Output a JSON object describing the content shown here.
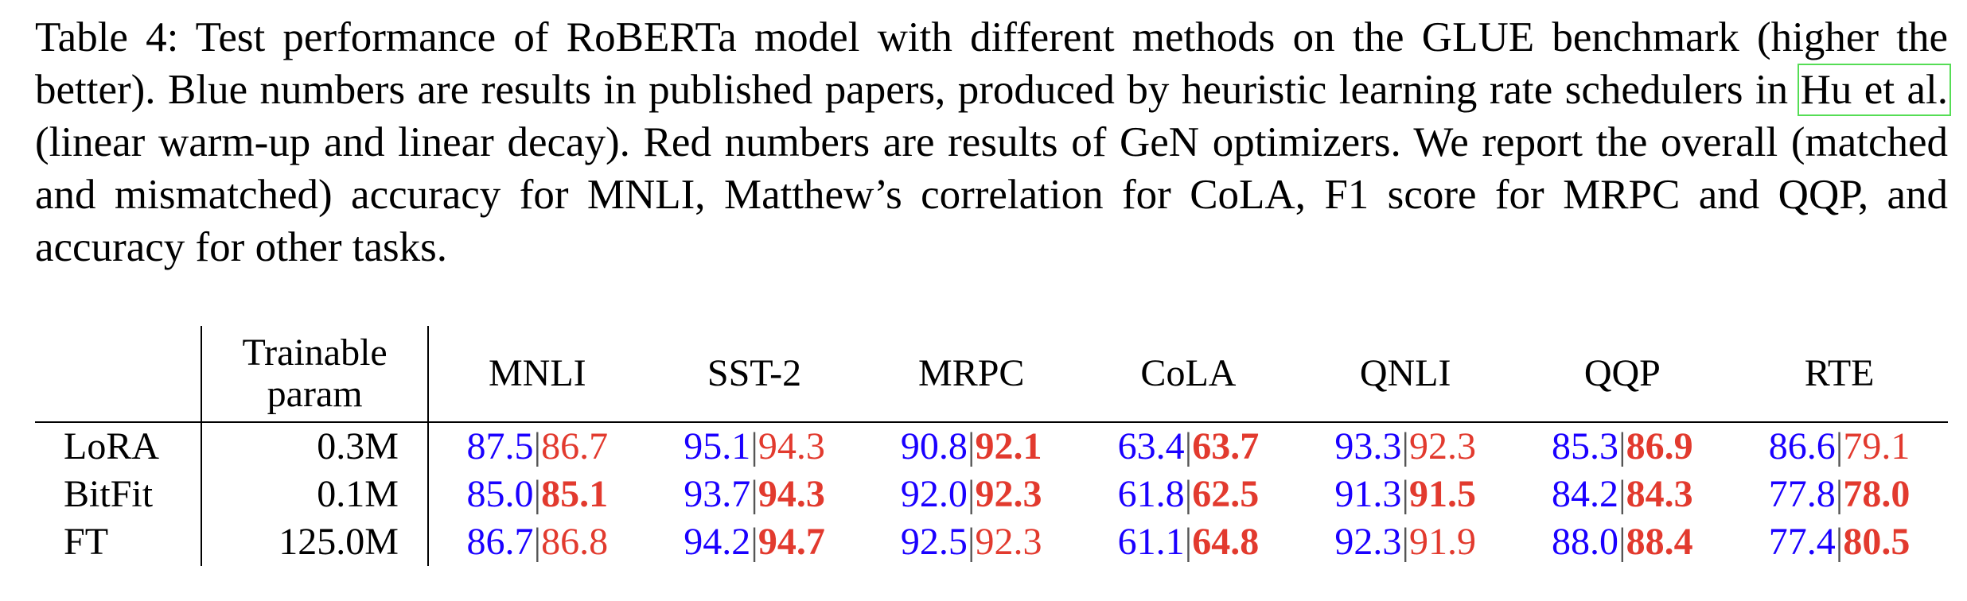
{
  "caption": {
    "part1": "Table 4:  Test performance of RoBERTa model with different methods on the GLUE benchmark (higher the better). Blue numbers are results in published papers, produced by heuristic learning rate schedulers in ",
    "citation": "Hu et al.",
    "part2": " (linear warm-up and linear decay). Red numbers are results of GeN optimizers. We report the overall (matched and mismatched) accuracy for MNLI, Matthew’s correlation for CoLA, F1 score for MRPC and QQP, and accuracy for other tasks."
  },
  "table": {
    "header": {
      "method": "",
      "param_line1": "Trainable",
      "param_line2": "param",
      "tasks": [
        "MNLI",
        "SST-2",
        "MRPC",
        "CoLA",
        "QNLI",
        "QQP",
        "RTE"
      ]
    },
    "separator": "|",
    "colors": {
      "published": "#1a00ff",
      "gen": "#e23a2e"
    },
    "rows": [
      {
        "method": "LoRA",
        "param": "0.3M",
        "cells": [
          {
            "blue": "87.5",
            "red": "86.7",
            "red_bold": false
          },
          {
            "blue": "95.1",
            "red": "94.3",
            "red_bold": false
          },
          {
            "blue": "90.8",
            "red": "92.1",
            "red_bold": true
          },
          {
            "blue": "63.4",
            "red": "63.7",
            "red_bold": true
          },
          {
            "blue": "93.3",
            "red": "92.3",
            "red_bold": false
          },
          {
            "blue": "85.3",
            "red": "86.9",
            "red_bold": true
          },
          {
            "blue": "86.6",
            "red": "79.1",
            "red_bold": false
          }
        ]
      },
      {
        "method": "BitFit",
        "param": "0.1M",
        "cells": [
          {
            "blue": "85.0",
            "red": "85.1",
            "red_bold": true
          },
          {
            "blue": "93.7",
            "red": "94.3",
            "red_bold": true
          },
          {
            "blue": "92.0",
            "red": "92.3",
            "red_bold": true
          },
          {
            "blue": "61.8",
            "red": "62.5",
            "red_bold": true
          },
          {
            "blue": "91.3",
            "red": "91.5",
            "red_bold": true
          },
          {
            "blue": "84.2",
            "red": "84.3",
            "red_bold": true
          },
          {
            "blue": "77.8",
            "red": "78.0",
            "red_bold": true
          }
        ]
      },
      {
        "method": "FT",
        "param": "125.0M",
        "cells": [
          {
            "blue": "86.7",
            "red": "86.8",
            "red_bold": false
          },
          {
            "blue": "94.2",
            "red": "94.7",
            "red_bold": true
          },
          {
            "blue": "92.5",
            "red": "92.3",
            "red_bold": false
          },
          {
            "blue": "61.1",
            "red": "64.8",
            "red_bold": true
          },
          {
            "blue": "92.3",
            "red": "91.9",
            "red_bold": false
          },
          {
            "blue": "88.0",
            "red": "88.4",
            "red_bold": true
          },
          {
            "blue": "77.4",
            "red": "80.5",
            "red_bold": true
          }
        ]
      }
    ]
  }
}
